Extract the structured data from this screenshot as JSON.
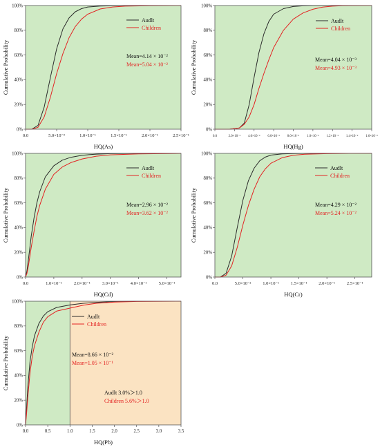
{
  "colors": {
    "adult": "#2b2b2b",
    "children": "#e32222",
    "safe_bg": "#cfeac4",
    "risk_bg": "#fbe3c2",
    "frame": "#555555"
  },
  "chart_data": [
    {
      "type": "line",
      "id": "as",
      "xlabel": "HQ(As)",
      "ylabel": "Cumulative Probability",
      "xlim": [
        0,
        0.25
      ],
      "ylim": [
        0,
        100
      ],
      "x_ticks": [
        0,
        0.05,
        0.1,
        0.15,
        0.2,
        0.25
      ],
      "x_tick_labels": [
        "0.0",
        "5.0×10⁻²",
        "1.0×10⁻¹",
        "1.5×10⁻¹",
        "2.0×10⁻¹",
        "2.5×10⁻¹"
      ],
      "y_ticks": [
        0,
        20,
        40,
        60,
        80,
        100
      ],
      "y_tick_labels": [
        "0%",
        "20%",
        "40%",
        "60%",
        "80%",
        "100%"
      ],
      "legend": [
        {
          "name": "Audlt",
          "key": "adult"
        },
        {
          "name": "Children",
          "key": "children"
        }
      ],
      "annotations": [
        {
          "text": "Mean=4.14 × 10⁻²",
          "key": "adult"
        },
        {
          "text": "Mean=5.04 × 10⁻²",
          "key": "children"
        }
      ],
      "series": [
        {
          "name": "Audlt",
          "key": "adult",
          "x": [
            0,
            0.01,
            0.02,
            0.03,
            0.04,
            0.05,
            0.06,
            0.07,
            0.08,
            0.09,
            0.1,
            0.12,
            0.14,
            0.16,
            0.2,
            0.25
          ],
          "y": [
            0,
            0,
            3,
            18,
            42,
            65,
            81,
            90,
            95,
            97.5,
            98.8,
            99.6,
            99.9,
            100,
            100,
            100
          ]
        },
        {
          "name": "Children",
          "key": "children",
          "x": [
            0,
            0.01,
            0.02,
            0.03,
            0.04,
            0.05,
            0.06,
            0.07,
            0.08,
            0.09,
            0.1,
            0.12,
            0.14,
            0.16,
            0.2,
            0.25
          ],
          "y": [
            0,
            0,
            1.5,
            10,
            26,
            45,
            61,
            74,
            83,
            89,
            93,
            97.2,
            98.8,
            99.5,
            99.9,
            100
          ]
        }
      ]
    },
    {
      "type": "line",
      "id": "hg",
      "xlabel": "HQ(Hg)",
      "ylabel": "Cumulative Probability",
      "xlim": [
        0,
        0.016
      ],
      "ylim": [
        0,
        100
      ],
      "x_ticks": [
        0,
        0.002,
        0.004,
        0.006,
        0.008,
        0.01,
        0.012,
        0.014,
        0.016
      ],
      "x_tick_labels": [
        "0.0",
        "2.0×10⁻³",
        "4.0×10⁻³",
        "6.0×10⁻³",
        "8.0×10⁻³",
        "1.0×10⁻²",
        "1.2×10⁻²",
        "1.4×10⁻²",
        "1.6×10⁻²"
      ],
      "y_ticks": [
        0,
        20,
        40,
        60,
        80,
        100
      ],
      "y_tick_labels": [
        "0%",
        "20%",
        "40%",
        "60%",
        "80%",
        "100%"
      ],
      "legend": [
        {
          "name": "Audlt",
          "key": "adult"
        },
        {
          "name": "Children",
          "key": "children"
        }
      ],
      "annotations": [
        {
          "text": "Mean=4.04 × 10⁻³",
          "key": "adult"
        },
        {
          "text": "Mean=4.93 × 10⁻³",
          "key": "children"
        }
      ],
      "series": [
        {
          "name": "Audlt",
          "key": "adult",
          "x": [
            0,
            0.0015,
            0.0025,
            0.003,
            0.0035,
            0.004,
            0.0045,
            0.005,
            0.0055,
            0.006,
            0.007,
            0.008,
            0.009,
            0.01,
            0.012,
            0.016
          ],
          "y": [
            0,
            0,
            1,
            5,
            20,
            42,
            62,
            77,
            87,
            93,
            97.5,
            99.2,
            99.8,
            100,
            100,
            100
          ]
        },
        {
          "name": "Children",
          "key": "children",
          "x": [
            0,
            0.0015,
            0.0025,
            0.003,
            0.0035,
            0.004,
            0.0045,
            0.005,
            0.0055,
            0.006,
            0.007,
            0.008,
            0.009,
            0.01,
            0.011,
            0.012,
            0.013,
            0.016
          ],
          "y": [
            0,
            0,
            1,
            4,
            10,
            20,
            33,
            45,
            56,
            66,
            80,
            89,
            94,
            97,
            98.7,
            99.5,
            99.9,
            100
          ]
        }
      ]
    },
    {
      "type": "line",
      "id": "cd",
      "xlabel": "HQ(Cd)",
      "ylabel": "Cumulative Probability",
      "xlim": [
        0,
        0.55
      ],
      "ylim": [
        0,
        100
      ],
      "x_ticks": [
        0,
        0.1,
        0.2,
        0.3,
        0.4,
        0.5
      ],
      "x_tick_labels": [
        "0.0",
        "1.0×10⁻¹",
        "2.0×10⁻¹",
        "3.0×10⁻¹",
        "4.0×10⁻¹",
        "5.0×10⁻¹"
      ],
      "y_ticks": [
        0,
        20,
        40,
        60,
        80,
        100
      ],
      "y_tick_labels": [
        "0%",
        "20%",
        "40%",
        "60%",
        "80%",
        "100%"
      ],
      "legend": [
        {
          "name": "Audlt",
          "key": "adult"
        },
        {
          "name": "Children",
          "key": "children"
        }
      ],
      "annotations": [
        {
          "text": "Mean=2.96 × 10⁻²",
          "key": "adult"
        },
        {
          "text": "Mean=3.62 × 10⁻²",
          "key": "children"
        }
      ],
      "series": [
        {
          "name": "Audlt",
          "key": "adult",
          "x": [
            0,
            0.005,
            0.01,
            0.02,
            0.03,
            0.04,
            0.05,
            0.07,
            0.1,
            0.13,
            0.16,
            0.2,
            0.25,
            0.3,
            0.4,
            0.55
          ],
          "y": [
            0,
            5,
            14,
            33,
            48,
            60,
            69,
            81,
            90,
            94.5,
            96.8,
            98.5,
            99.4,
            99.8,
            100,
            100
          ]
        },
        {
          "name": "Children",
          "key": "children",
          "x": [
            0,
            0.005,
            0.01,
            0.02,
            0.03,
            0.04,
            0.05,
            0.07,
            0.1,
            0.13,
            0.16,
            0.2,
            0.25,
            0.3,
            0.4,
            0.55
          ],
          "y": [
            0,
            3,
            9,
            24,
            37,
            49,
            58,
            71,
            83,
            89,
            92.5,
            95.5,
            97.7,
            98.8,
            99.6,
            100
          ]
        }
      ]
    },
    {
      "type": "line",
      "id": "cr",
      "xlabel": "HQ(Cr)",
      "ylabel": "Cumulative Probability",
      "xlim": [
        0,
        0.28
      ],
      "ylim": [
        0,
        100
      ],
      "x_ticks": [
        0,
        0.05,
        0.1,
        0.15,
        0.2,
        0.25
      ],
      "x_tick_labels": [
        "0.0",
        "5.0×10⁻²",
        "1.0×10⁻¹",
        "1.5×10⁻¹",
        "2.0×10⁻¹",
        "2.5×10⁻¹"
      ],
      "y_ticks": [
        0,
        20,
        40,
        60,
        80,
        100
      ],
      "y_tick_labels": [
        "0%",
        "20%",
        "40%",
        "60%",
        "80%",
        "100%"
      ],
      "legend": [
        {
          "name": "Audlt",
          "key": "adult"
        },
        {
          "name": "Children",
          "key": "children"
        }
      ],
      "annotations": [
        {
          "text": "Mean=4.29 × 10⁻²",
          "key": "adult"
        },
        {
          "text": "Mean=5.24 × 10⁻²",
          "key": "children"
        }
      ],
      "series": [
        {
          "name": "Audlt",
          "key": "adult",
          "x": [
            0,
            0.01,
            0.02,
            0.03,
            0.04,
            0.05,
            0.06,
            0.07,
            0.08,
            0.09,
            0.1,
            0.12,
            0.14,
            0.16,
            0.2,
            0.28
          ],
          "y": [
            0,
            0,
            3,
            17,
            40,
            62,
            78,
            88,
            94,
            97,
            98.6,
            99.6,
            99.9,
            100,
            100,
            100
          ]
        },
        {
          "name": "Children",
          "key": "children",
          "x": [
            0,
            0.01,
            0.02,
            0.03,
            0.04,
            0.05,
            0.06,
            0.07,
            0.08,
            0.09,
            0.1,
            0.12,
            0.14,
            0.16,
            0.2,
            0.24,
            0.28
          ],
          "y": [
            0,
            0,
            1.5,
            9,
            24,
            42,
            58,
            71,
            81,
            87.5,
            92,
            96.5,
            98.5,
            99.3,
            99.8,
            100,
            100
          ]
        }
      ]
    },
    {
      "type": "line",
      "id": "pb",
      "xlabel": "HQ(Pb)",
      "ylabel": "Cumulative Probability",
      "xlim": [
        0,
        3.5
      ],
      "ylim": [
        0,
        100
      ],
      "x_ticks": [
        0,
        0.5,
        1,
        1.5,
        2,
        2.5,
        3,
        3.5
      ],
      "x_tick_labels": [
        "0.0",
        "0.5",
        "1.0",
        "1.5",
        "2.0",
        "2.5",
        "3.0",
        "3.5"
      ],
      "y_ticks": [
        0,
        20,
        40,
        60,
        80,
        100
      ],
      "y_tick_labels": [
        "0%",
        "20%",
        "40%",
        "60%",
        "80%",
        "100%"
      ],
      "risk_threshold": 1.0,
      "legend": [
        {
          "name": "Audlt",
          "key": "adult"
        },
        {
          "name": "Children",
          "key": "children"
        }
      ],
      "annotations": [
        {
          "text": "Mean=8.66 × 10⁻²",
          "key": "adult"
        },
        {
          "text": "Mean=1.05 × 10⁻¹",
          "key": "children"
        },
        {
          "text": "Audlt 3.0%＞1.0",
          "key": "adult"
        },
        {
          "text": "Children 5.6%＞1.0",
          "key": "children"
        }
      ],
      "series": [
        {
          "name": "Audlt",
          "key": "adult",
          "x": [
            0,
            0.02,
            0.05,
            0.1,
            0.15,
            0.2,
            0.3,
            0.4,
            0.5,
            0.7,
            1.0,
            1.3,
            1.6,
            2.0,
            2.5,
            3.5
          ],
          "y": [
            0,
            12,
            30,
            51,
            63,
            72,
            82,
            88,
            91.5,
            95,
            97,
            98.3,
            99.1,
            99.7,
            100,
            100
          ]
        },
        {
          "name": "Children",
          "key": "children",
          "x": [
            0,
            0.02,
            0.05,
            0.1,
            0.15,
            0.2,
            0.3,
            0.4,
            0.5,
            0.7,
            1.0,
            1.3,
            1.6,
            2.0,
            2.5,
            3.5
          ],
          "y": [
            0,
            8,
            22,
            42,
            55,
            64,
            75,
            83,
            87.5,
            92,
            94.4,
            96.8,
            98.3,
            99.3,
            99.8,
            100
          ]
        }
      ]
    }
  ]
}
